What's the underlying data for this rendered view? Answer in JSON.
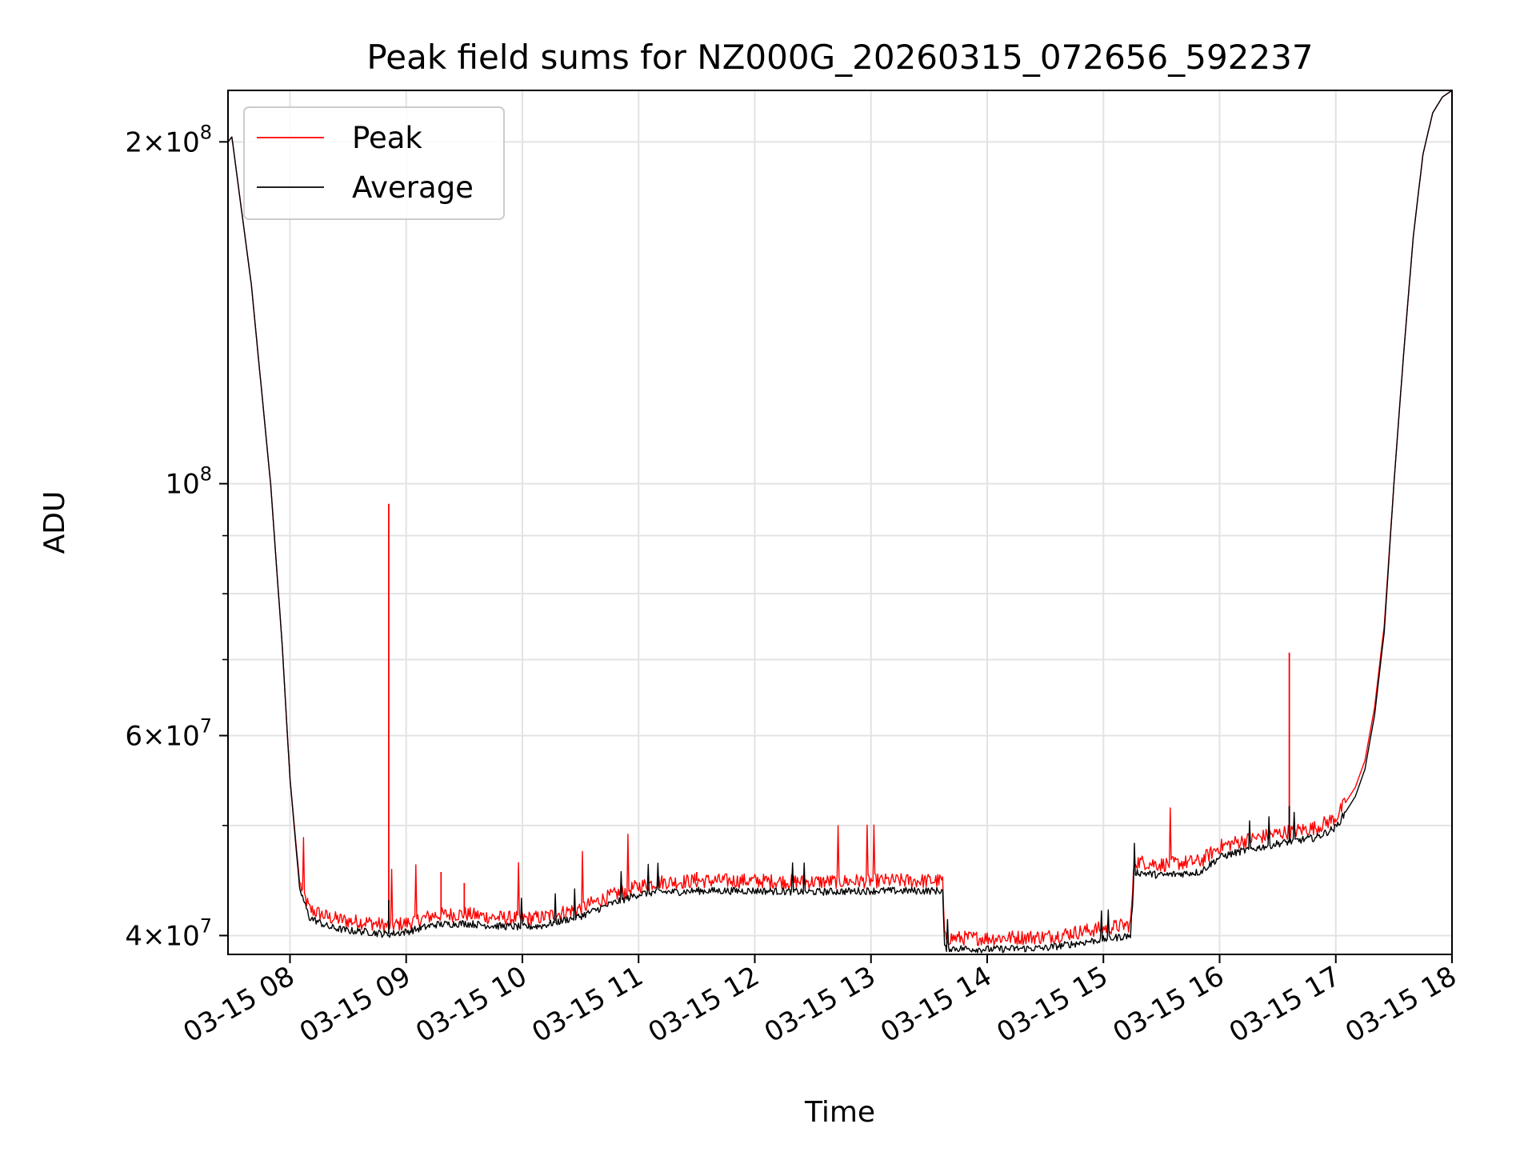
{
  "chart_data": {
    "type": "line",
    "title": "Peak field sums for NZ000G_20260315_072656_592237",
    "xlabel": "Time",
    "ylabel": "ADU",
    "y_scale": "log",
    "ylim": [
      38500000,
      222000000
    ],
    "xlim": [
      "03-15 07:28",
      "03-15 18:00"
    ],
    "grid": true,
    "legend_position": "upper-left",
    "x_ticks": [
      "03-15 08",
      "03-15 09",
      "03-15 10",
      "03-15 11",
      "03-15 12",
      "03-15 13",
      "03-15 14",
      "03-15 15",
      "03-15 16",
      "03-15 17",
      "03-15 18"
    ],
    "y_ticks": [
      {
        "value": 40000000,
        "base": "4",
        "exp": "7"
      },
      {
        "value": 60000000,
        "base": "6",
        "exp": "7"
      },
      {
        "value": 100000000,
        "base": "",
        "exp": "8"
      },
      {
        "value": 200000000,
        "base": "2",
        "exp": "8"
      }
    ],
    "y_minor_ticks": [
      50000000,
      70000000,
      80000000,
      90000000
    ],
    "series": [
      {
        "name": "Peak",
        "color": "#ff0000",
        "x": [
          "07:28",
          "07:30",
          "07:40",
          "07:50",
          "07:56",
          "08:00",
          "08:05",
          "08:10",
          "08:20",
          "08:30",
          "08:40",
          "08:50",
          "09:00",
          "09:15",
          "09:30",
          "09:45",
          "10:00",
          "10:10",
          "10:20",
          "10:30",
          "10:45",
          "11:00",
          "11:10",
          "11:20",
          "11:30",
          "12:00",
          "12:30",
          "13:00",
          "13:37",
          "13:38",
          "14:00",
          "14:30",
          "15:00",
          "15:14",
          "15:16",
          "15:30",
          "15:50",
          "16:00",
          "16:10",
          "16:30",
          "16:50",
          "17:00",
          "17:10",
          "17:15",
          "17:20",
          "17:25",
          "17:30",
          "17:35",
          "17:40",
          "17:45",
          "17:50",
          "17:55",
          "18:00"
        ],
        "y": [
          200000000,
          202000000,
          150000000,
          100000000,
          72000000,
          55000000,
          44500000,
          42200000,
          41500000,
          41200000,
          41100000,
          40800000,
          41000000,
          41700000,
          41800000,
          41500000,
          41400000,
          41500000,
          41900000,
          42300000,
          43300000,
          44200000,
          44600000,
          44600000,
          44700000,
          44700000,
          44600000,
          44700000,
          44700000,
          39800000,
          39800000,
          39900000,
          40600000,
          40900000,
          46500000,
          46200000,
          46500000,
          47900000,
          48400000,
          49200000,
          49800000,
          50800000,
          54000000,
          57000000,
          63500000,
          75000000,
          100000000,
          130000000,
          165000000,
          195000000,
          212000000,
          219000000,
          222000000
        ],
        "spikes": [
          {
            "x": "08:51",
            "y": 96000000
          },
          {
            "x": "09:18",
            "y": 45500000
          },
          {
            "x": "09:30",
            "y": 44500000
          },
          {
            "x": "11:30",
            "y": 45500000
          },
          {
            "x": "16:36",
            "y": 71000000
          }
        ]
      },
      {
        "name": "Average",
        "color": "#000000",
        "x": [
          "07:28",
          "07:30",
          "07:40",
          "07:50",
          "07:56",
          "08:00",
          "08:05",
          "08:10",
          "08:20",
          "08:30",
          "08:40",
          "08:50",
          "09:00",
          "09:15",
          "09:30",
          "09:45",
          "10:00",
          "10:10",
          "10:20",
          "10:30",
          "10:45",
          "11:00",
          "11:10",
          "11:20",
          "11:30",
          "12:00",
          "12:30",
          "13:00",
          "13:37",
          "13:38",
          "14:00",
          "14:30",
          "15:00",
          "15:14",
          "15:16",
          "15:30",
          "15:50",
          "16:00",
          "16:10",
          "16:30",
          "16:50",
          "17:00",
          "17:10",
          "17:15",
          "17:20",
          "17:25",
          "17:30",
          "17:35",
          "17:40",
          "17:45",
          "17:50",
          "17:55",
          "18:00"
        ],
        "y": [
          200000000,
          202000000,
          150000000,
          100000000,
          72000000,
          55000000,
          44000000,
          41500000,
          40700000,
          40400000,
          40300000,
          40100000,
          40300000,
          40900000,
          41000000,
          40800000,
          40700000,
          40800000,
          41200000,
          41600000,
          42600000,
          43500000,
          43700000,
          43700000,
          43800000,
          43800000,
          43700000,
          43800000,
          43800000,
          39000000,
          38900000,
          39000000,
          39700000,
          40000000,
          45500000,
          45200000,
          45500000,
          46900000,
          47400000,
          48200000,
          48800000,
          49800000,
          53000000,
          56000000,
          62500000,
          74000000,
          100000000,
          130000000,
          165000000,
          195000000,
          212000000,
          219000000,
          222000000
        ],
        "spikes": [
          {
            "x": "08:51",
            "y": 43000000
          },
          {
            "x": "16:36",
            "y": 52000000
          }
        ]
      }
    ]
  }
}
